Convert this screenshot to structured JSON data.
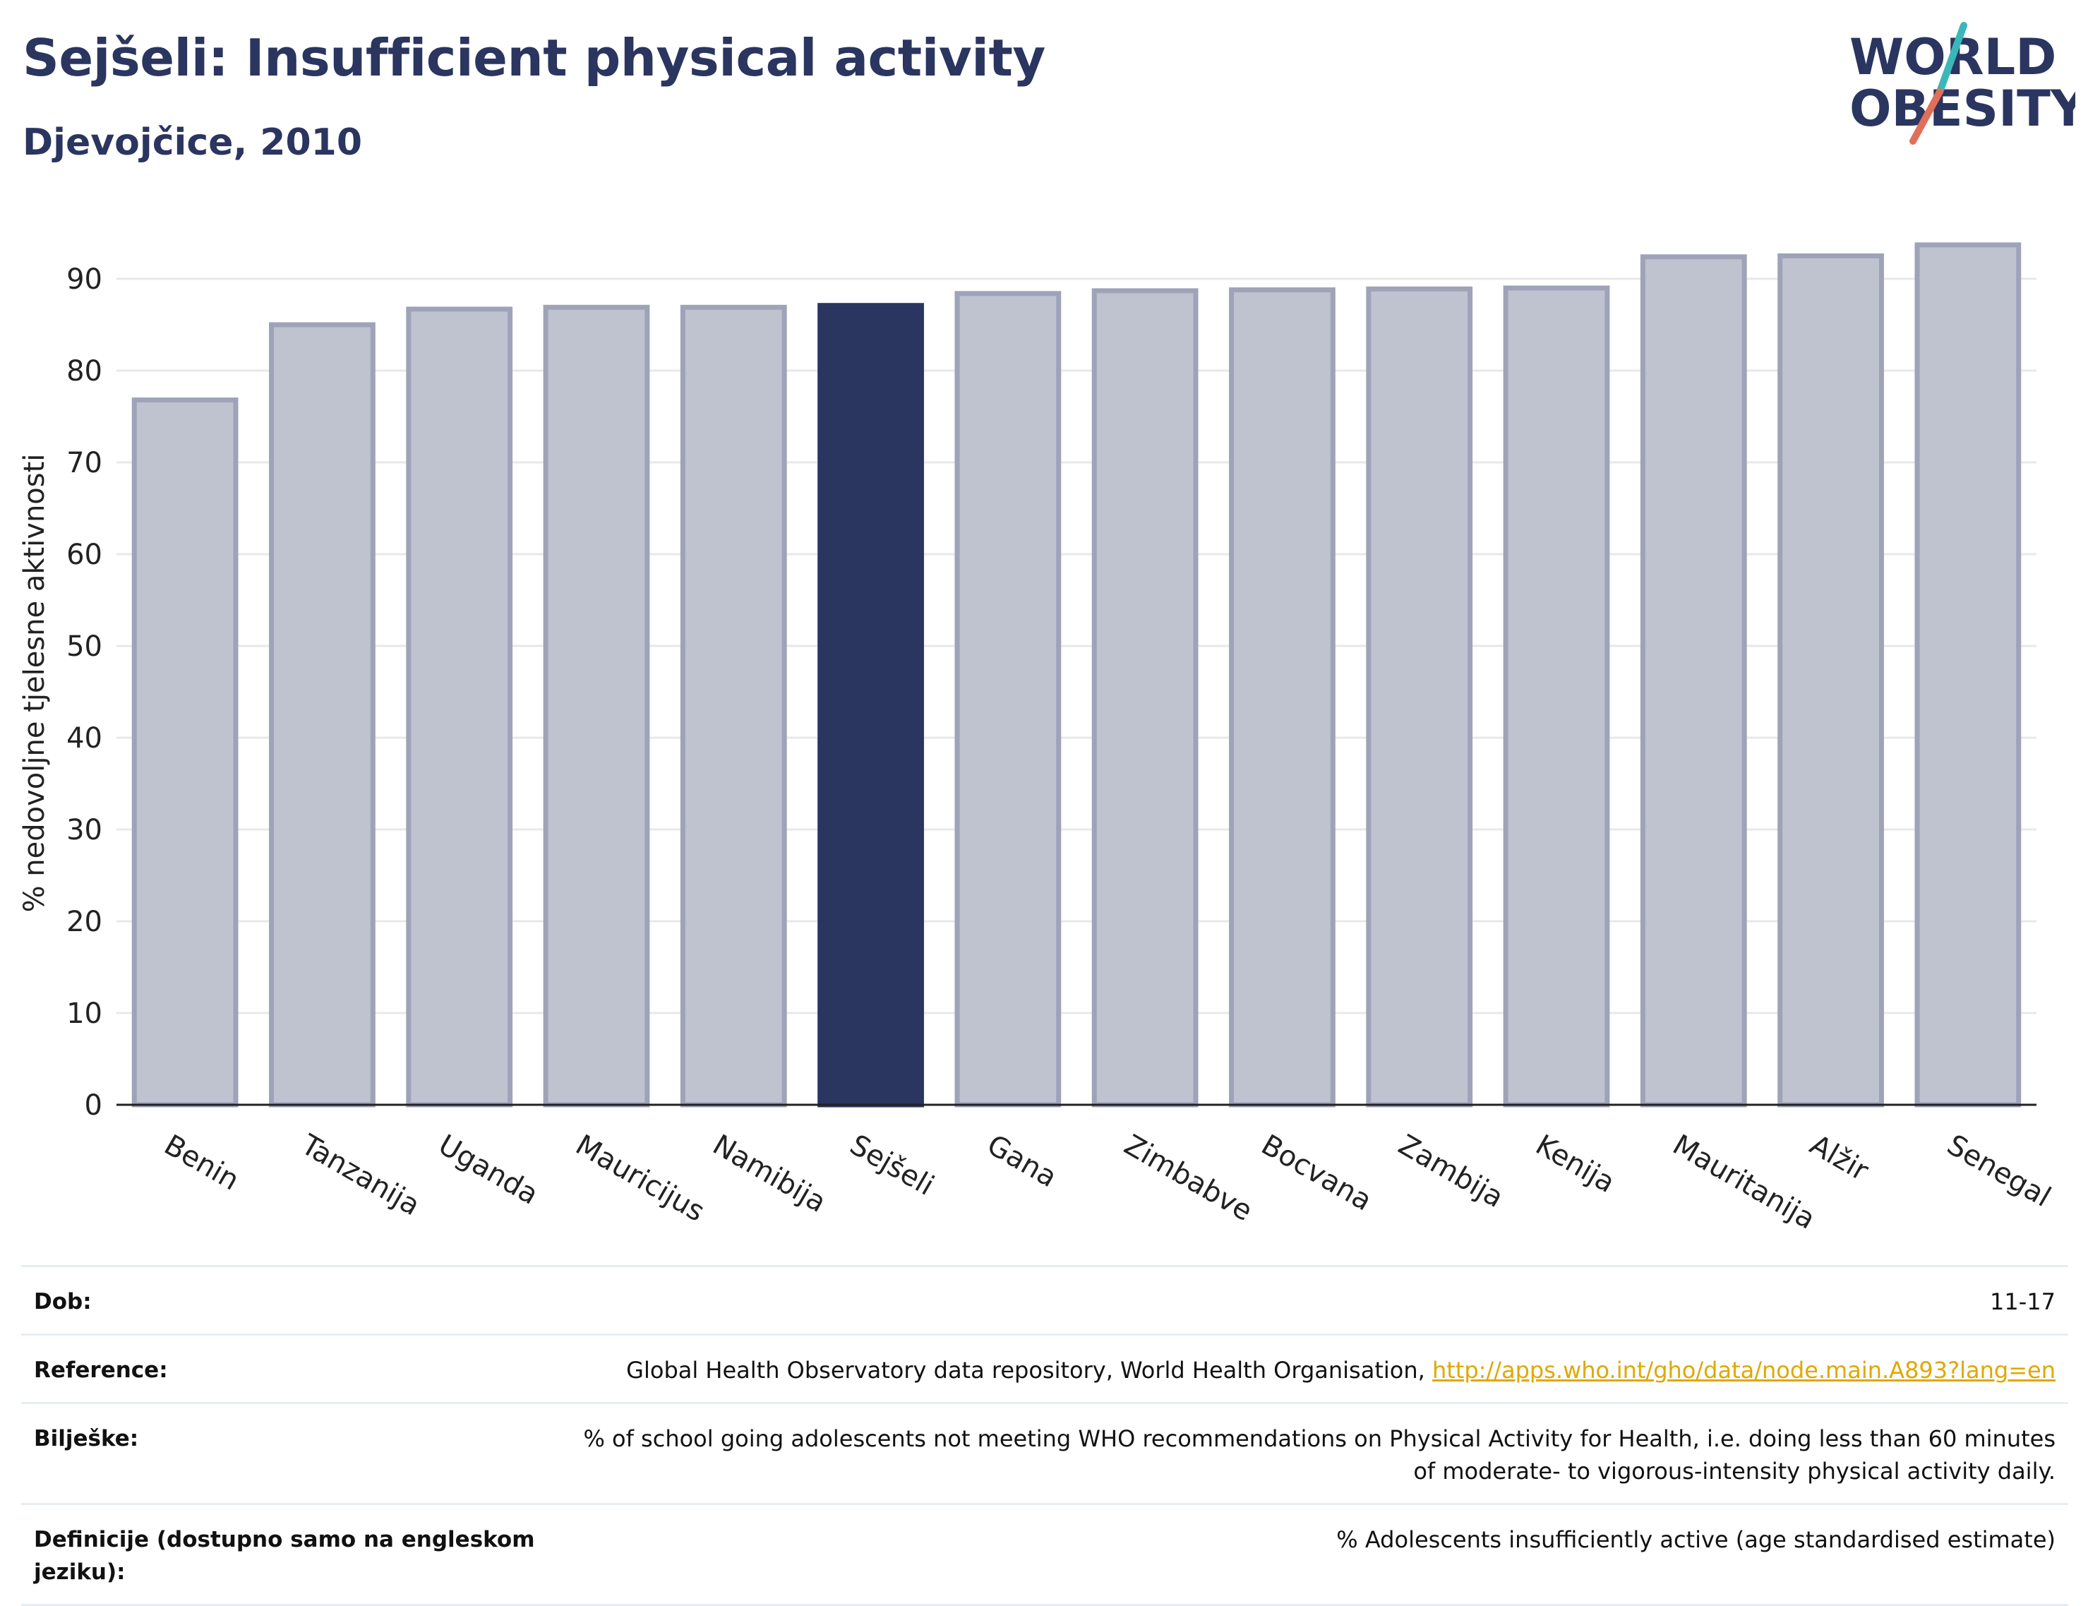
{
  "header": {
    "title": "Sejšeli: Insufficient physical activity",
    "subtitle": "Djevojčice, 2010"
  },
  "logo": {
    "line1": "WORLD",
    "line2": "OBESITY"
  },
  "colors": {
    "bar_default": "#bfc2cf",
    "bar_default_border": "#9ea3b8",
    "bar_highlight": "#2a3560",
    "title": "#2a3560",
    "logo_teal": "#3ab7b9",
    "logo_red": "#e0705a",
    "link": "#e0a800"
  },
  "chart_data": {
    "type": "bar",
    "categories": [
      "Benin",
      "Tanzanija",
      "Uganda",
      "Mauricijus",
      "Namibija",
      "Sejšeli",
      "Gana",
      "Zimbabve",
      "Bocvana",
      "Zambija",
      "Kenija",
      "Mauritanija",
      "Alžir",
      "Senegal"
    ],
    "values": [
      76.8,
      85.0,
      86.7,
      86.9,
      86.9,
      87.1,
      88.4,
      88.7,
      88.8,
      88.9,
      89.0,
      92.4,
      92.5,
      93.7
    ],
    "highlight": "Sejšeli",
    "ylabel": "% nedovoljne tjelesne aktivnosti",
    "ylim": [
      0,
      95
    ],
    "yticks": [
      0,
      10,
      20,
      30,
      40,
      50,
      60,
      70,
      80,
      90
    ],
    "grid": true
  },
  "info": {
    "rows": [
      {
        "label": "Dob:",
        "value": "11-17"
      },
      {
        "label": "Reference:",
        "value": "Global Health Observatory data repository, World Health Organisation, ",
        "link": "http://apps.who.int/gho/data/node.main.A893?lang=en"
      },
      {
        "label": "Bilješke:",
        "value": "% of school going adolescents not meeting WHO recommendations on Physical Activity for Health, i.e. doing less than 60 minutes of moderate- to vigorous-intensity physical activity daily."
      },
      {
        "label": "Definicije (dostupno samo na engleskom jeziku):",
        "value": "% Adolescents insufficiently active (age standardised estimate)"
      }
    ]
  }
}
